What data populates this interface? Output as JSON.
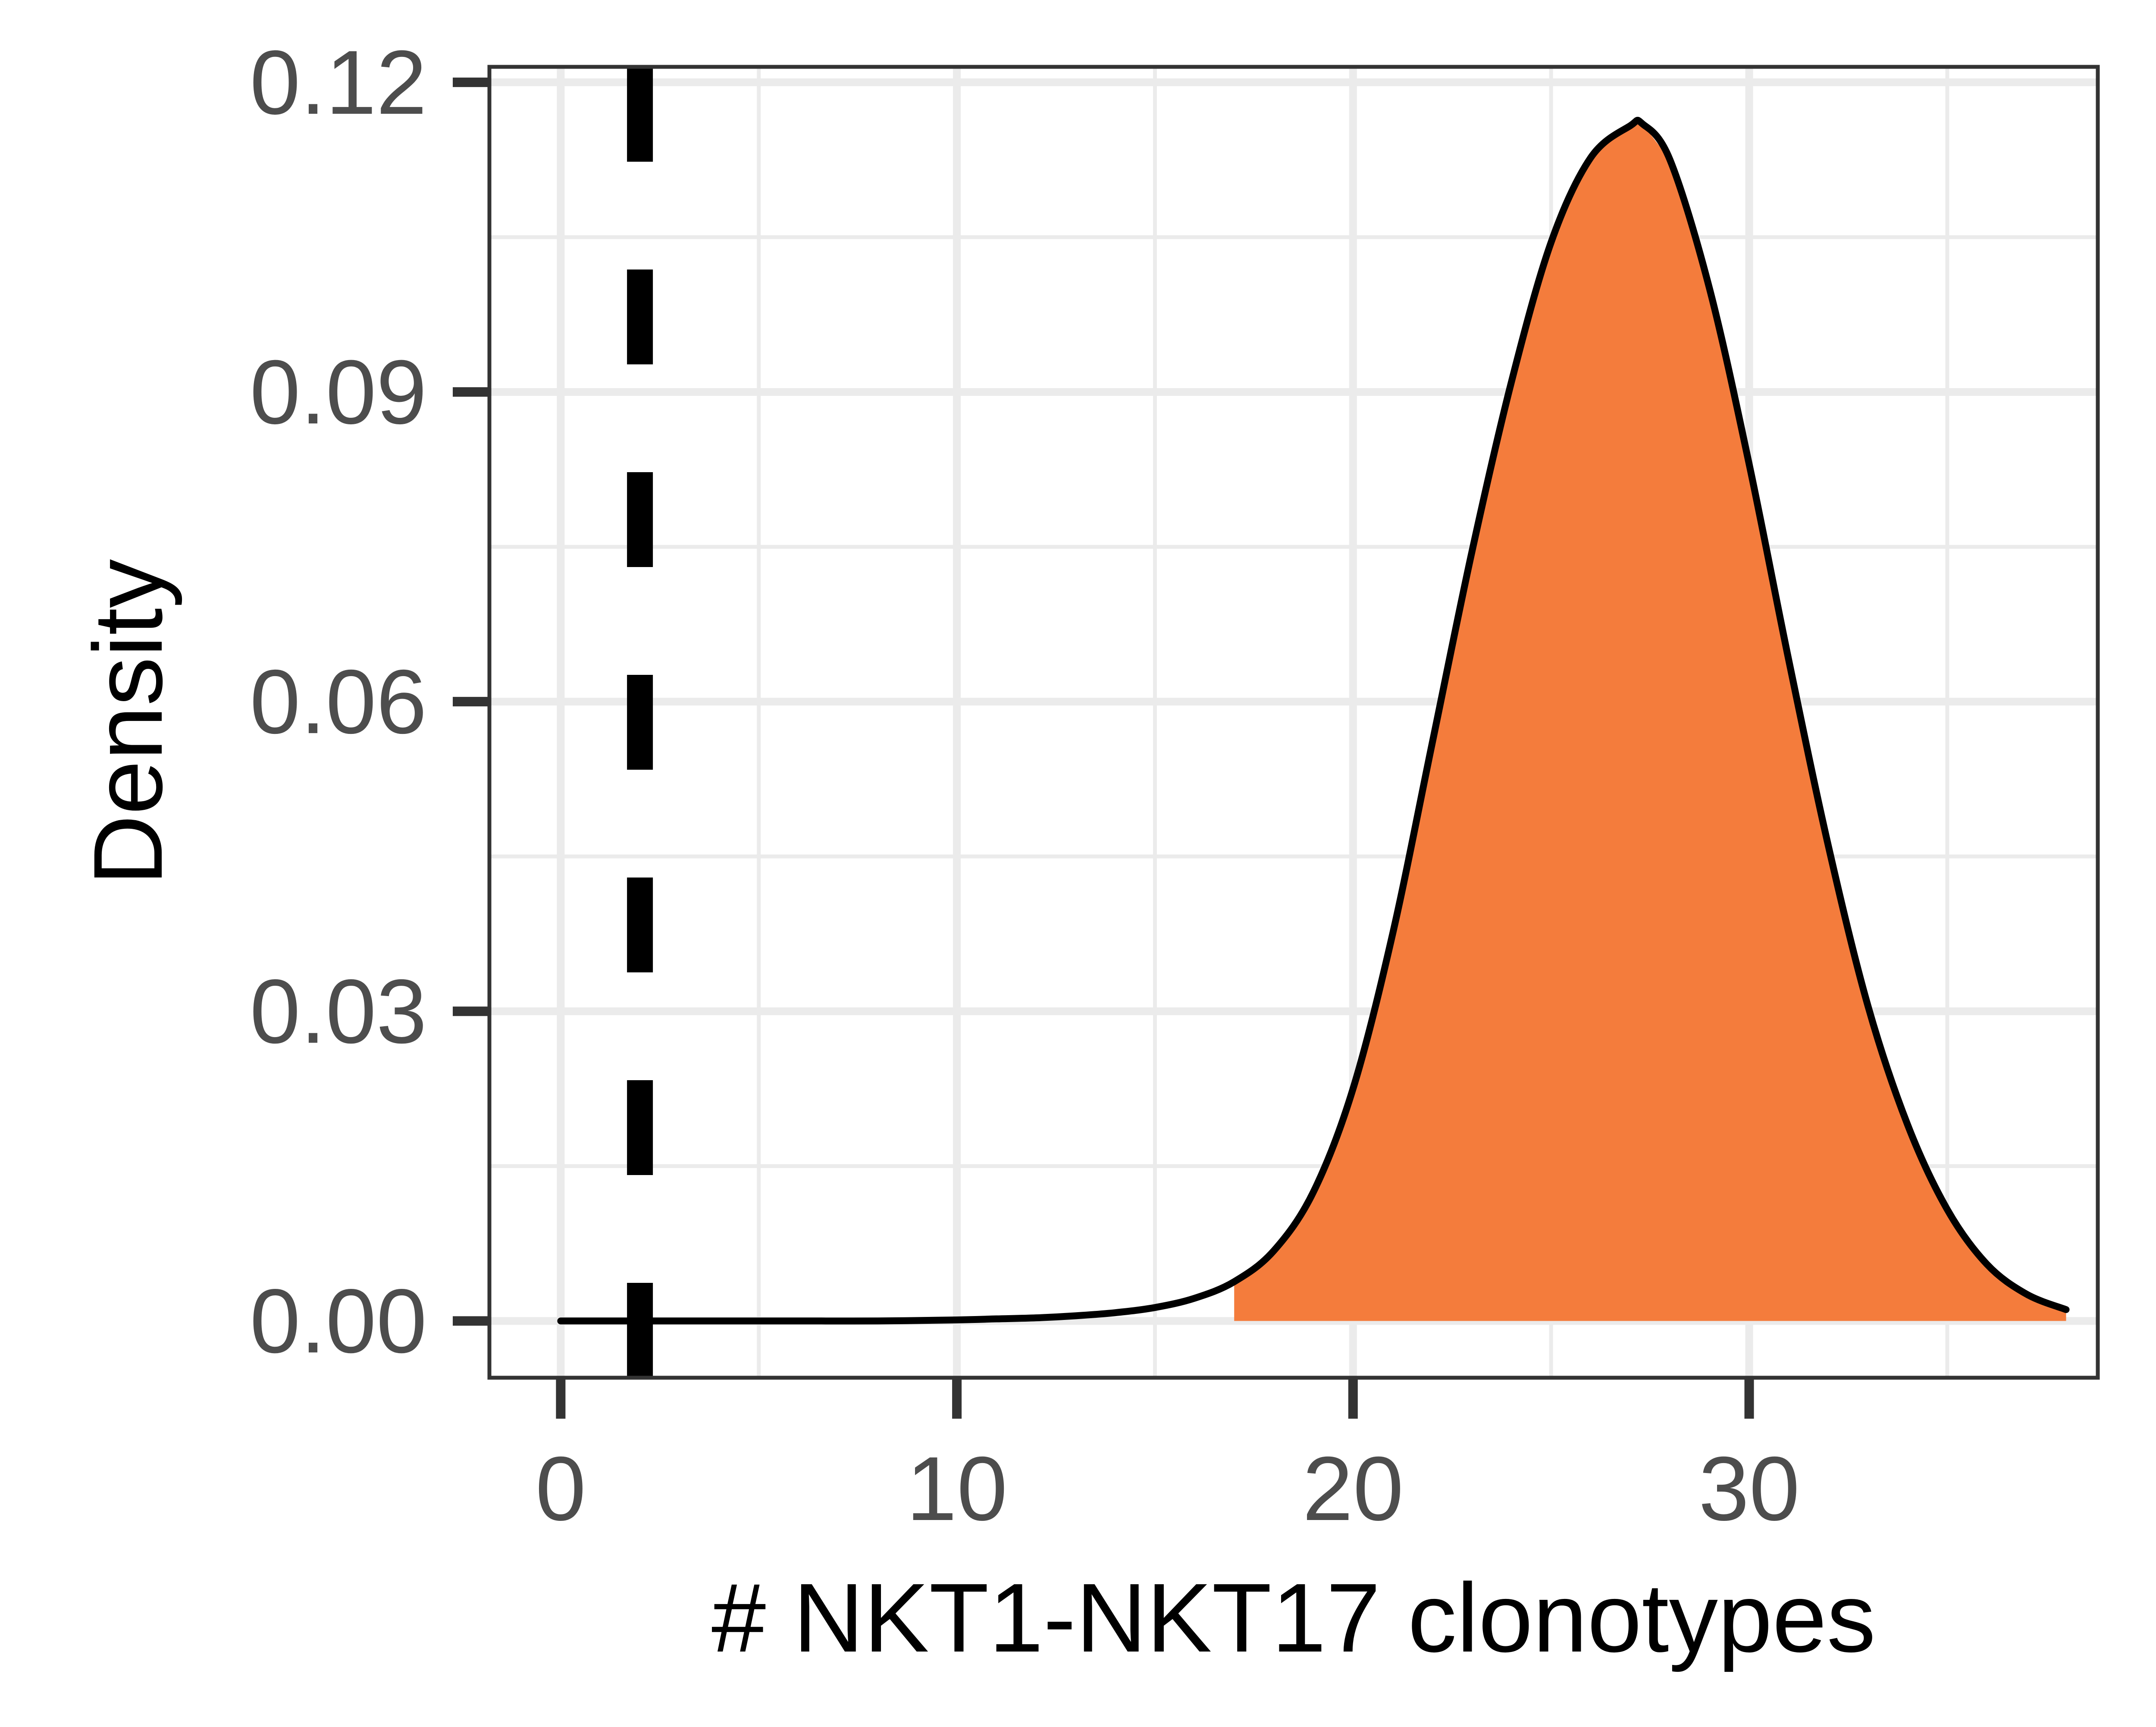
{
  "chart_data": {
    "type": "area",
    "title": "",
    "xlabel": "# NKT1-NKT17 clonotypes",
    "ylabel": "Density",
    "xlim": [
      -1.8,
      38.8
    ],
    "ylim": [
      -0.0055,
      0.1215
    ],
    "x_ticks": [
      0,
      10,
      20,
      30
    ],
    "x_tick_labels": [
      "0",
      "10",
      "20",
      "30"
    ],
    "y_ticks": [
      0.0,
      0.03,
      0.06,
      0.09,
      0.12
    ],
    "y_tick_labels": [
      "0.00",
      "0.03",
      "0.06",
      "0.09",
      "0.12"
    ],
    "grid": true,
    "legend": "none",
    "series": [
      {
        "x": [
          0,
          2,
          4,
          6,
          8,
          10,
          11,
          12,
          13,
          14,
          15,
          16,
          17,
          18,
          19,
          20,
          21,
          22,
          23,
          24,
          25,
          26,
          27,
          27.3,
          28,
          29,
          30,
          31,
          32,
          33,
          34,
          35,
          36,
          37,
          38
        ],
        "values": [
          0.0,
          0.0,
          0.0,
          0.0,
          0.0,
          0.0001,
          0.0002,
          0.0003,
          0.0005,
          0.0008,
          0.0013,
          0.0022,
          0.0038,
          0.0068,
          0.0125,
          0.0225,
          0.0375,
          0.056,
          0.0745,
          0.091,
          0.1045,
          0.1127,
          0.1158,
          0.116,
          0.1125,
          0.1,
          0.083,
          0.064,
          0.046,
          0.0305,
          0.019,
          0.0108,
          0.0055,
          0.0026,
          0.0011
        ],
        "fill_start_x": 16.5,
        "fill_color": "#F47C3C",
        "line_color": "#000000"
      }
    ],
    "reference_line": {
      "x": 2,
      "style": "dashed",
      "color": "#000000"
    },
    "colors": {
      "panel_border": "#333333",
      "grid": "#ebebeb",
      "tick_text": "#4d4d4d",
      "axis_title": "#000000",
      "fill": "#F47C3C"
    }
  }
}
